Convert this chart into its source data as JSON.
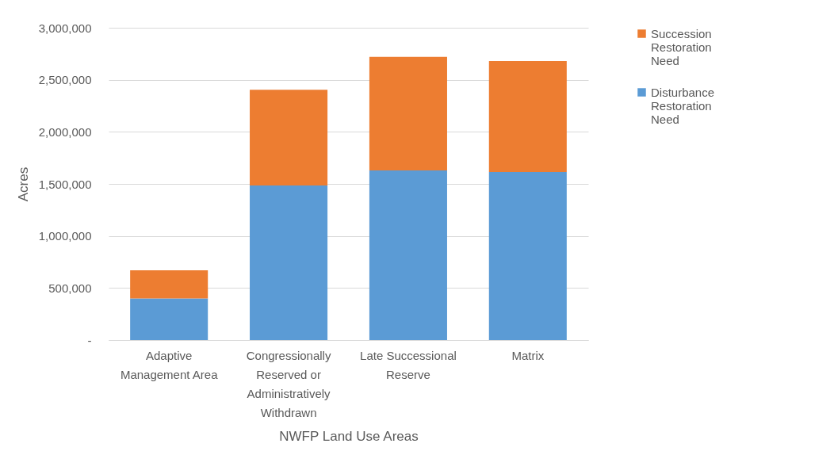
{
  "chart_data": {
    "type": "bar",
    "xlabel": "NWFP Land Use Areas",
    "ylabel": "Acres",
    "categories": [
      "Adaptive Management Area",
      "Congressionally Reserved or Administratively Withdrawn",
      "Late Successional Reserve",
      "Matrix"
    ],
    "stacked": true,
    "series": [
      {
        "name": "Disturbance Restoration Need",
        "color": "#5b9bd5",
        "values": [
          400000,
          1485000,
          1630000,
          1615000
        ]
      },
      {
        "name": "Succession Restoration Need",
        "color": "#ed7d31",
        "values": [
          270000,
          920000,
          1090000,
          1065000
        ]
      }
    ],
    "ylim": [
      0,
      3000000
    ],
    "yticks": [
      {
        "value": 0,
        "label": "-"
      },
      {
        "value": 500000,
        "label": "500,000"
      },
      {
        "value": 1000000,
        "label": "1,000,000"
      },
      {
        "value": 1500000,
        "label": "1,500,000"
      },
      {
        "value": 2000000,
        "label": "2,000,000"
      },
      {
        "value": 2500000,
        "label": "2,500,000"
      },
      {
        "value": 3000000,
        "label": "3,000,000"
      }
    ],
    "grid": "y",
    "legend": "right"
  }
}
